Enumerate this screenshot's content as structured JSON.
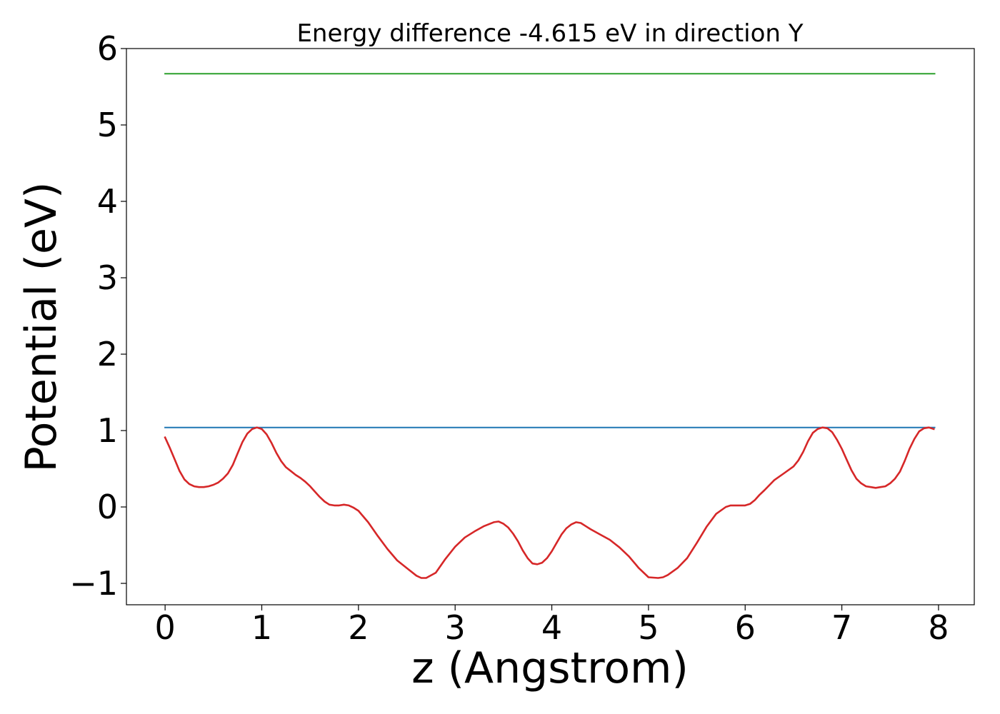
{
  "chart_data": {
    "type": "line",
    "title": "Energy difference -4.615 eV in direction Y",
    "xlabel": "z (Angstrom)",
    "ylabel": "Potential (eV)",
    "xlim": [
      -0.4,
      8.37
    ],
    "ylim": [
      -1.28,
      6.0
    ],
    "xticks": [
      0,
      1,
      2,
      3,
      4,
      5,
      6,
      7,
      8
    ],
    "xtick_labels": [
      "0",
      "1",
      "2",
      "3",
      "4",
      "5",
      "6",
      "7",
      "8"
    ],
    "yticks": [
      -1,
      0,
      1,
      2,
      3,
      4,
      5,
      6
    ],
    "ytick_labels": [
      "−1",
      "0",
      "1",
      "2",
      "3",
      "4",
      "5",
      "6"
    ],
    "grid": false,
    "series": [
      {
        "color": "#2ca02c",
        "x": [
          0,
          7.96
        ],
        "y": [
          5.67,
          5.67
        ]
      },
      {
        "color": "#1f77b4",
        "x": [
          0,
          7.96
        ],
        "y": [
          1.04,
          1.04
        ]
      },
      {
        "color": "#d62728",
        "x": [
          0,
          0.05,
          0.1,
          0.15,
          0.2,
          0.25,
          0.3,
          0.35,
          0.4,
          0.45,
          0.5,
          0.55,
          0.6,
          0.65,
          0.7,
          0.75,
          0.8,
          0.85,
          0.9,
          0.95,
          1.0,
          1.05,
          1.1,
          1.15,
          1.2,
          1.25,
          1.3,
          1.35,
          1.4,
          1.45,
          1.5,
          1.55,
          1.6,
          1.65,
          1.7,
          1.75,
          1.8,
          1.85,
          1.9,
          1.95,
          2.0,
          2.1,
          2.2,
          2.3,
          2.4,
          2.5,
          2.6,
          2.65,
          2.7,
          2.8,
          2.9,
          3.0,
          3.1,
          3.2,
          3.3,
          3.4,
          3.45,
          3.5,
          3.55,
          3.6,
          3.65,
          3.7,
          3.75,
          3.8,
          3.85,
          3.9,
          3.95,
          4.0,
          4.05,
          4.1,
          4.15,
          4.2,
          4.25,
          4.3,
          4.35,
          4.4,
          4.5,
          4.6,
          4.7,
          4.8,
          4.9,
          5.0,
          5.1,
          5.15,
          5.2,
          5.3,
          5.4,
          5.5,
          5.6,
          5.7,
          5.8,
          5.85,
          5.9,
          5.95,
          6.0,
          6.05,
          6.1,
          6.15,
          6.2,
          6.3,
          6.4,
          6.5,
          6.55,
          6.6,
          6.65,
          6.7,
          6.75,
          6.8,
          6.85,
          6.9,
          6.95,
          7.0,
          7.05,
          7.1,
          7.15,
          7.2,
          7.25,
          7.3,
          7.35,
          7.4,
          7.45,
          7.5,
          7.55,
          7.6,
          7.65,
          7.7,
          7.75,
          7.8,
          7.85,
          7.9,
          7.95
        ],
        "y": [
          0.91,
          0.77,
          0.62,
          0.47,
          0.36,
          0.3,
          0.27,
          0.26,
          0.26,
          0.27,
          0.29,
          0.32,
          0.37,
          0.44,
          0.55,
          0.7,
          0.85,
          0.96,
          1.02,
          1.04,
          1.02,
          0.95,
          0.84,
          0.71,
          0.6,
          0.52,
          0.47,
          0.42,
          0.38,
          0.33,
          0.27,
          0.2,
          0.13,
          0.07,
          0.03,
          0.02,
          0.02,
          0.03,
          0.02,
          -0.01,
          -0.05,
          -0.2,
          -0.38,
          -0.55,
          -0.7,
          -0.8,
          -0.9,
          -0.93,
          -0.93,
          -0.86,
          -0.68,
          -0.52,
          -0.4,
          -0.32,
          -0.25,
          -0.2,
          -0.19,
          -0.22,
          -0.27,
          -0.35,
          -0.45,
          -0.57,
          -0.67,
          -0.74,
          -0.75,
          -0.73,
          -0.67,
          -0.58,
          -0.47,
          -0.36,
          -0.28,
          -0.23,
          -0.2,
          -0.21,
          -0.25,
          -0.29,
          -0.36,
          -0.43,
          -0.53,
          -0.65,
          -0.8,
          -0.92,
          -0.93,
          -0.92,
          -0.89,
          -0.8,
          -0.67,
          -0.47,
          -0.26,
          -0.09,
          0.0,
          0.02,
          0.02,
          0.02,
          0.02,
          0.04,
          0.09,
          0.16,
          0.22,
          0.35,
          0.44,
          0.53,
          0.61,
          0.72,
          0.86,
          0.97,
          1.02,
          1.04,
          1.03,
          0.98,
          0.88,
          0.76,
          0.62,
          0.48,
          0.37,
          0.31,
          0.27,
          0.26,
          0.25,
          0.26,
          0.27,
          0.31,
          0.37,
          0.46,
          0.6,
          0.76,
          0.89,
          0.99,
          1.03,
          1.04,
          1.02
        ]
      }
    ]
  }
}
